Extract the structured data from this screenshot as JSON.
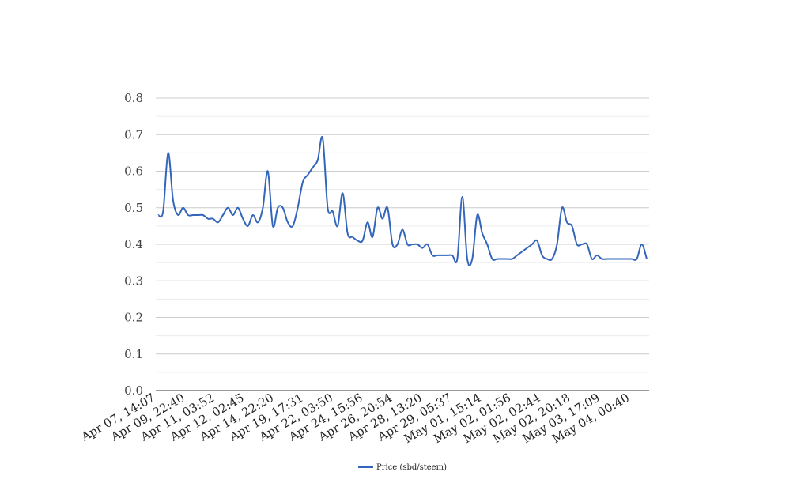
{
  "chart_data": {
    "type": "line",
    "title": "",
    "xlabel": "",
    "ylabel": "",
    "ylim": [
      0,
      0.8
    ],
    "yticks": [
      "0.0",
      "0.1",
      "0.2",
      "0.3",
      "0.4",
      "0.5",
      "0.6",
      "0.7",
      "0.8"
    ],
    "grid": true,
    "legend_position": "bottom",
    "x_tick_labels": [
      "Apr 07, 14:07",
      "Apr 09, 22:40",
      "Apr 11, 03:52",
      "Apr 12, 02:45",
      "Apr 14, 22:20",
      "Apr 19, 17:31",
      "Apr 22, 03:50",
      "Apr 24, 15:56",
      "Apr 26, 20:54",
      "Apr 28, 13:20",
      "Apr 29, 05:37",
      "May 01, 15:14",
      "May 02, 01:56",
      "May 02, 02:44",
      "May 02, 20:18",
      "May 03, 17:09",
      "May 04, 00:40"
    ],
    "series": [
      {
        "name": "Price (sbd/steem)",
        "color": "#3366bb",
        "values": [
          0.48,
          0.49,
          0.65,
          0.52,
          0.48,
          0.5,
          0.48,
          0.48,
          0.48,
          0.48,
          0.47,
          0.47,
          0.46,
          0.48,
          0.5,
          0.48,
          0.5,
          0.47,
          0.45,
          0.48,
          0.46,
          0.5,
          0.6,
          0.45,
          0.5,
          0.5,
          0.46,
          0.45,
          0.5,
          0.57,
          0.59,
          0.61,
          0.63,
          0.69,
          0.5,
          0.49,
          0.45,
          0.54,
          0.43,
          0.42,
          0.41,
          0.41,
          0.46,
          0.42,
          0.5,
          0.47,
          0.5,
          0.4,
          0.4,
          0.44,
          0.4,
          0.4,
          0.4,
          0.39,
          0.4,
          0.37,
          0.37,
          0.37,
          0.37,
          0.37,
          0.36,
          0.53,
          0.36,
          0.36,
          0.48,
          0.43,
          0.4,
          0.36,
          0.36,
          0.36,
          0.36,
          0.36,
          0.37,
          0.38,
          0.39,
          0.4,
          0.41,
          0.37,
          0.36,
          0.36,
          0.4,
          0.5,
          0.46,
          0.45,
          0.4,
          0.4,
          0.4,
          0.36,
          0.37,
          0.36,
          0.36,
          0.36,
          0.36,
          0.36,
          0.36,
          0.36,
          0.36,
          0.4,
          0.36
        ]
      }
    ]
  }
}
